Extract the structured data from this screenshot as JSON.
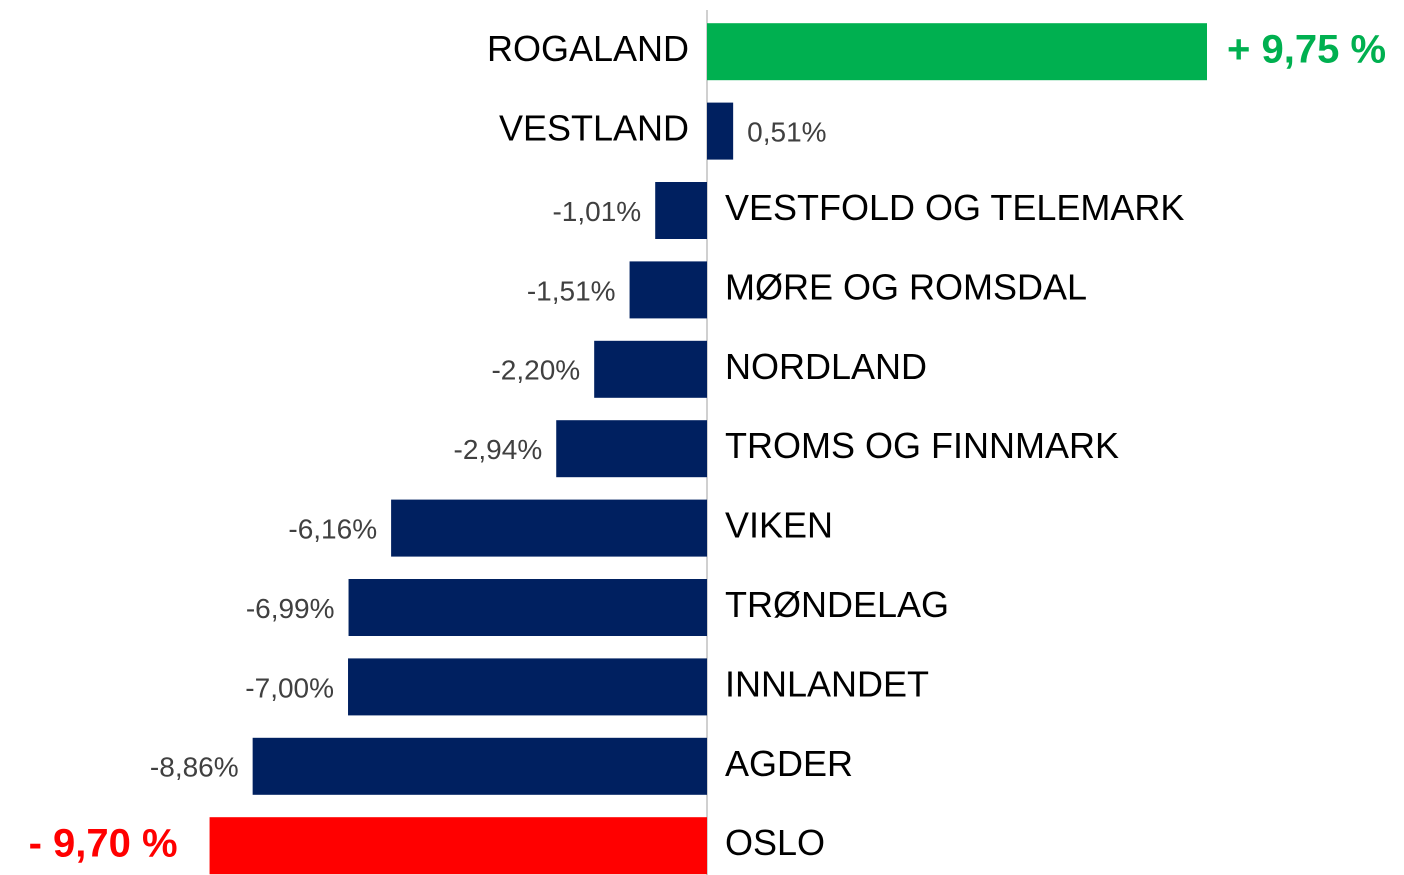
{
  "chart_data": {
    "type": "bar",
    "orientation": "horizontal",
    "categories": [
      "ROGALAND",
      "VESTLAND",
      "VESTFOLD OG TELEMARK",
      "MØRE OG ROMSDAL",
      "NORDLAND",
      "TROMS OG FINNMARK",
      "VIKEN",
      "TRØNDELAG",
      "INNLANDET",
      "AGDER",
      "OSLO"
    ],
    "values": [
      9.75,
      0.51,
      -1.01,
      -1.51,
      -2.2,
      -2.94,
      -6.16,
      -6.99,
      -7.0,
      -8.86,
      -9.7
    ],
    "value_labels": [
      "+ 9,75 %",
      "0,51%",
      "-1,01%",
      "-1,51%",
      "-2,20%",
      "-2,94%",
      "-6,16%",
      "-6,99%",
      "-7,00%",
      "-8,86%",
      "- 9,70 %"
    ],
    "color": "#002060",
    "colors": [
      "#00b050",
      "#002060",
      "#002060",
      "#002060",
      "#002060",
      "#002060",
      "#002060",
      "#002060",
      "#002060",
      "#002060",
      "#ff0000"
    ]
  }
}
